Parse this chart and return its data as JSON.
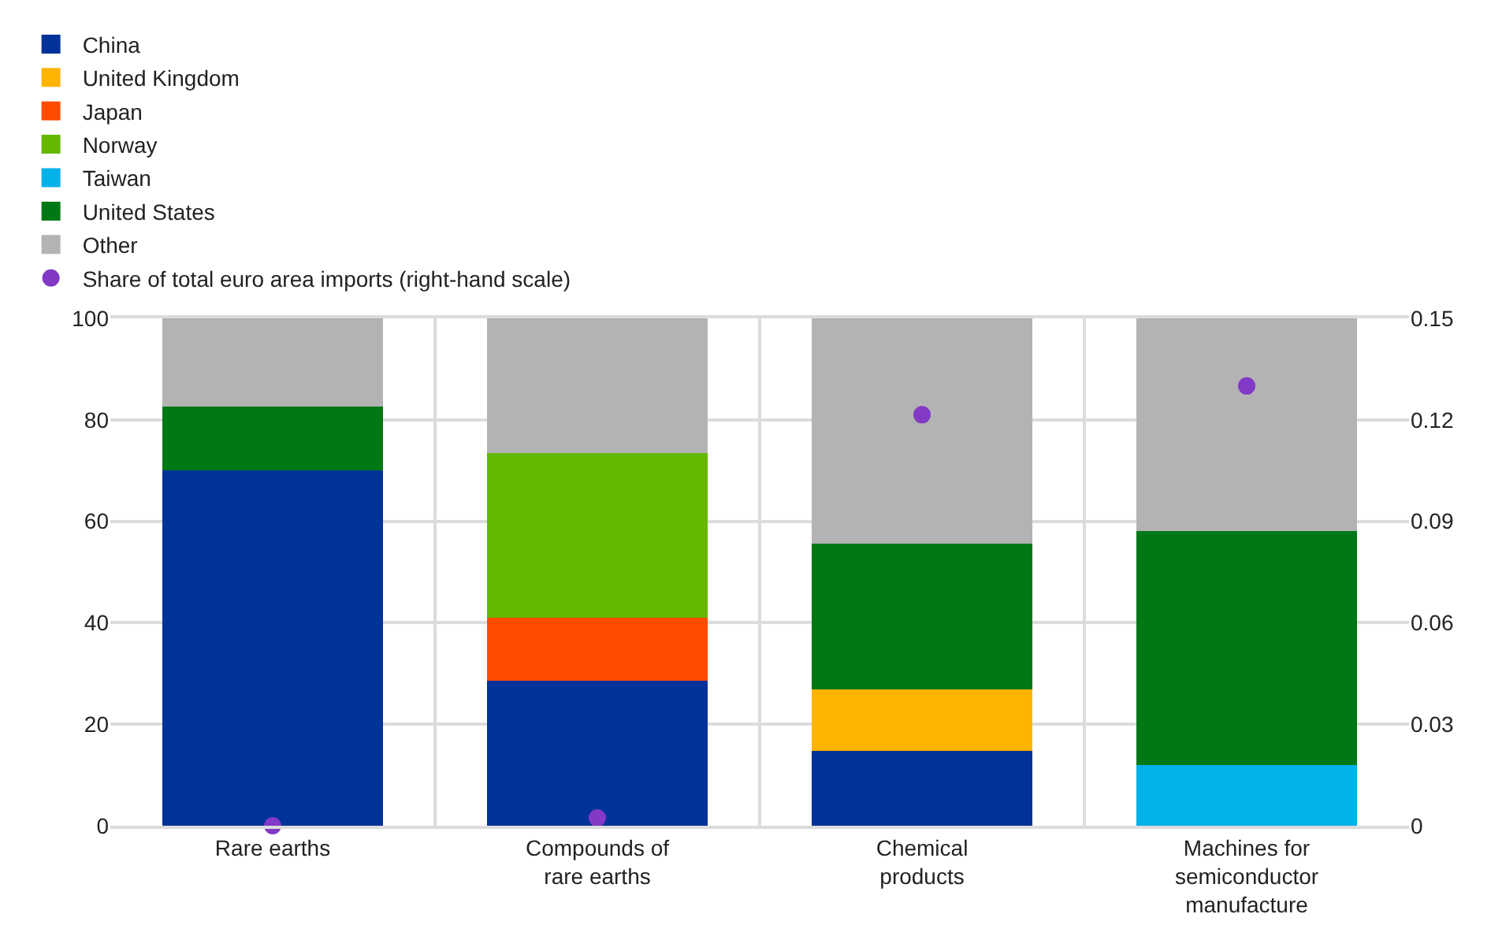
{
  "chart_data": {
    "type": "bar",
    "stacked": true,
    "categories": [
      "Rare earths",
      "Compounds of\nrare earths",
      "Chemical\nproducts",
      "Machines for\nsemiconductor\nmanufacture"
    ],
    "series": [
      {
        "name": "China",
        "color": "#003299",
        "values": [
          70,
          28.6,
          14.7,
          null
        ]
      },
      {
        "name": "United Kingdom",
        "color": "#ffb400",
        "values": [
          null,
          null,
          12.2,
          null
        ]
      },
      {
        "name": "Japan",
        "color": "#ff4b00",
        "values": [
          null,
          12.4,
          null,
          null
        ]
      },
      {
        "name": "Norway",
        "color": "#65b800",
        "values": [
          null,
          32.5,
          null,
          null
        ]
      },
      {
        "name": "Taiwan",
        "color": "#00b1ea",
        "values": [
          null,
          null,
          null,
          12
        ]
      },
      {
        "name": "United States",
        "color": "#007816",
        "values": [
          12.6,
          null,
          28.7,
          46
        ]
      },
      {
        "name": "Other",
        "color": "#b3b3b3",
        "values": [
          17.4,
          26.5,
          44.4,
          42
        ]
      },
      {
        "name": "Share of total euro area imports (right-hand scale)",
        "type": "scatter",
        "axis": "y2",
        "marker": "circle",
        "color": "#8139c6",
        "values": [
          0,
          0.0023,
          0.1215,
          0.13
        ]
      }
    ],
    "ylim": [
      0,
      100
    ],
    "yticks": [
      0,
      20,
      40,
      60,
      80,
      100
    ],
    "y2lim": [
      0,
      0.15
    ],
    "y2ticks": [
      0,
      0.03,
      0.06,
      0.09,
      0.12,
      0.15
    ],
    "grid": true,
    "legend": "top left"
  }
}
